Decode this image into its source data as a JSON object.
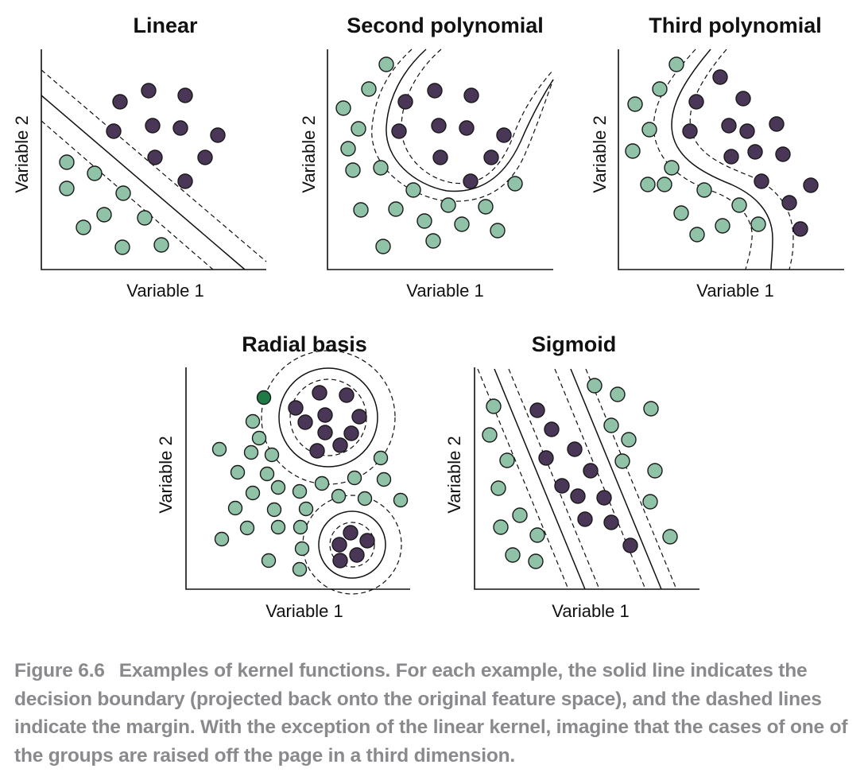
{
  "colors": {
    "group_a": "#8fc2a6",
    "group_b": "#4a3656",
    "highlight": "#1f7a45",
    "caption": "#8a8a8e"
  },
  "panels": [
    {
      "id": "linear",
      "title": "Linear",
      "xlabel": "Variable 1",
      "ylabel": "Variable 2"
    },
    {
      "id": "second-polynomial",
      "title": "Second polynomial",
      "xlabel": "Variable 1",
      "ylabel": "Variable 2"
    },
    {
      "id": "third-polynomial",
      "title": "Third polynomial",
      "xlabel": "Variable 1",
      "ylabel": "Variable 2"
    },
    {
      "id": "radial-basis",
      "title": "Radial basis",
      "xlabel": "Variable 1",
      "ylabel": "Variable 2"
    },
    {
      "id": "sigmoid",
      "title": "Sigmoid",
      "xlabel": "Variable 1",
      "ylabel": "Variable 2"
    }
  ],
  "caption": {
    "label": "Figure 6.6",
    "text": "Examples of kernel functions. For each example, the solid line indicates the decision boundary (projected back onto the original feature space), and the dashed lines indicate the margin. With the exception of the linear kernel, imagine that the cases of one of the groups are raised off the page in a third dimension."
  }
}
